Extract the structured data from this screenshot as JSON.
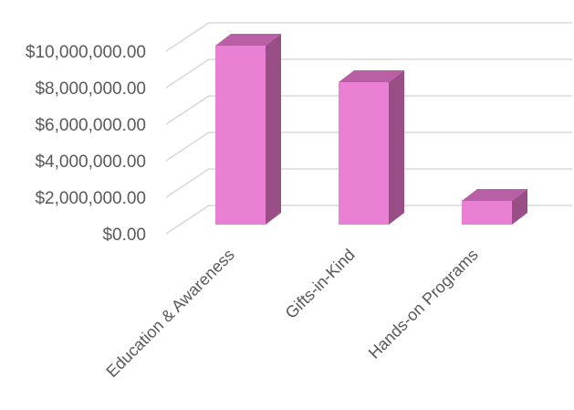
{
  "colors": {
    "bar_front": "#EA80D3",
    "bar_top": "#B95FA5",
    "bar_side": "#9A4E86",
    "grid": "#D9D9D9",
    "text": "#595959",
    "background": "#FFFFFF"
  },
  "chart_data": {
    "type": "bar",
    "title": "",
    "xlabel": "",
    "ylabel": "",
    "categories": [
      "Education & Awareness",
      "Gifts-in-Kind",
      "Hands-on Programs"
    ],
    "values": [
      9800000,
      7800000,
      1300000
    ],
    "ylim": [
      0,
      11000000
    ],
    "yticks": [
      0,
      2000000,
      4000000,
      6000000,
      8000000,
      10000000
    ],
    "ytick_labels": [
      "$0.00",
      "$2,000,000.00",
      "$4,000,000.00",
      "$6,000,000.00",
      "$8,000,000.00",
      "$10,000,000.00"
    ],
    "grid": true,
    "legend": "none",
    "style": "3d-column"
  }
}
